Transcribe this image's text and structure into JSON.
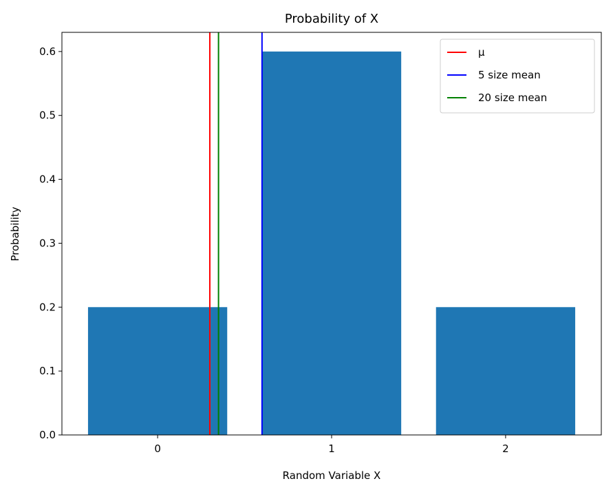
{
  "chart_data": {
    "type": "bar",
    "title": "Probability of X",
    "xlabel": "Random Variable X",
    "ylabel": "Probability",
    "categories": [
      "0",
      "1",
      "2"
    ],
    "x": [
      0,
      1,
      2
    ],
    "values": [
      0.2,
      0.6,
      0.2
    ],
    "ylim": [
      0,
      0.63
    ],
    "xlim": [
      -0.55,
      2.55
    ],
    "yticks": [
      0.0,
      0.1,
      0.2,
      0.3,
      0.4,
      0.5,
      0.6
    ],
    "ytick_labels": [
      "0.0",
      "0.1",
      "0.2",
      "0.3",
      "0.4",
      "0.5",
      "0.6"
    ],
    "bar_color": "#1f77b4",
    "grid": false,
    "lines": [
      {
        "name": "μ",
        "x": 0.3,
        "color": "#ff0000"
      },
      {
        "name": "5 size mean",
        "x": 0.6,
        "color": "#0000ff"
      },
      {
        "name": "20 size mean",
        "x": 0.35,
        "color": "#008000"
      }
    ],
    "legend": {
      "position": "top-right",
      "entries": [
        "μ",
        "5 size mean",
        "20 size mean"
      ]
    }
  }
}
